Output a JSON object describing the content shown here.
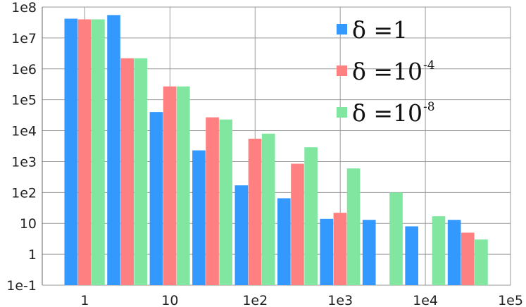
{
  "chart_data": {
    "type": "bar",
    "x_scale": "log",
    "y_scale": "log",
    "grid": true,
    "legend_position": "top-right",
    "x_tick_labels": [
      "1",
      "10",
      "1e2",
      "1e3",
      "1e4",
      "1e5"
    ],
    "y_tick_labels": [
      "1e-1",
      "1",
      "10",
      "1e2",
      "1e3",
      "1e4",
      "1e5",
      "1e6",
      "1e7",
      "1e8"
    ],
    "ylim": [
      0.1,
      100000000
    ],
    "bins": [
      [
        0.56,
        1.78
      ],
      [
        1.78,
        5.62
      ],
      [
        5.62,
        17.8
      ],
      [
        17.8,
        56.2
      ],
      [
        56.2,
        178
      ],
      [
        178,
        562
      ],
      [
        562,
        1778
      ],
      [
        1778,
        5623
      ],
      [
        5623,
        17783
      ],
      [
        17783,
        56234
      ]
    ],
    "series": [
      {
        "name": "δ =1",
        "legend_base": "δ =1",
        "legend_sup": "",
        "color": "#3399ff",
        "values": [
          42000000,
          55000000,
          40000,
          2300,
          170,
          65,
          14,
          13,
          8,
          13
        ]
      },
      {
        "name": "δ =10-4",
        "legend_base": "δ =10",
        "legend_sup": "-4",
        "color": "#ff8080",
        "values": [
          40000000,
          2200000,
          270000,
          27000,
          5500,
          850,
          22,
          null,
          null,
          5
        ]
      },
      {
        "name": "δ =10-8",
        "legend_base": "δ =10",
        "legend_sup": "-8",
        "color": "#80e6a0",
        "values": [
          40000000,
          2200000,
          270000,
          23000,
          8000,
          2900,
          600,
          100,
          17,
          3
        ]
      }
    ]
  }
}
